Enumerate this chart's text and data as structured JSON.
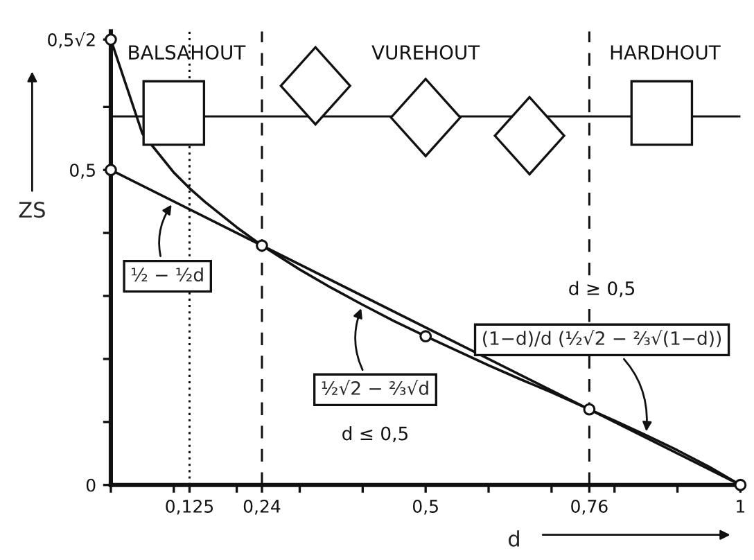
{
  "chart_data": {
    "type": "line",
    "xlabel": "d",
    "ylabel": "ZS",
    "xlim": [
      0,
      1
    ],
    "ylim": [
      0,
      0.72
    ],
    "xticks": [
      {
        "value": 0,
        "label": null
      },
      {
        "value": 0.1,
        "label": null
      },
      {
        "value": 0.125,
        "label": "0,125"
      },
      {
        "value": 0.2,
        "label": null
      },
      {
        "value": 0.24,
        "label": "0,24"
      },
      {
        "value": 0.3,
        "label": null
      },
      {
        "value": 0.4,
        "label": null
      },
      {
        "value": 0.5,
        "label": "0,5"
      },
      {
        "value": 0.6,
        "label": null
      },
      {
        "value": 0.7,
        "label": null
      },
      {
        "value": 0.76,
        "label": "0,76"
      },
      {
        "value": 0.8,
        "label": null
      },
      {
        "value": 0.9,
        "label": null
      },
      {
        "value": 1,
        "label": "1"
      }
    ],
    "yticks": [
      {
        "value": 0,
        "label": "0"
      },
      {
        "value": 0.1,
        "label": null
      },
      {
        "value": 0.2,
        "label": null
      },
      {
        "value": 0.3,
        "label": null
      },
      {
        "value": 0.4,
        "label": null
      },
      {
        "value": 0.5,
        "label": "0,5"
      },
      {
        "value": 0.6,
        "label": null
      },
      {
        "value": 0.707,
        "label": "0,5√2"
      }
    ],
    "series": [
      {
        "color": "#111111",
        "x": [
          0,
          1
        ],
        "values": [
          0.5,
          0
        ]
      },
      {
        "color": "#111111",
        "x": [
          0,
          0.05,
          0.1,
          0.125,
          0.15,
          0.2,
          0.24,
          0.3,
          0.35,
          0.4,
          0.45,
          0.5,
          0.55,
          0.6,
          0.65,
          0.7,
          0.76,
          0.8,
          0.85,
          0.9,
          0.95,
          1
        ],
        "values": [
          0.707,
          0.558,
          0.496,
          0.471,
          0.449,
          0.409,
          0.38,
          0.342,
          0.313,
          0.286,
          0.26,
          0.236,
          0.213,
          0.19,
          0.168,
          0.147,
          0.12,
          0.102,
          0.079,
          0.055,
          0.029,
          0
        ]
      },
      {
        "type": "scatter",
        "color": "#111111",
        "marker": "circle",
        "x": [
          0,
          0,
          0.24,
          0.5,
          0.76,
          1
        ],
        "values": [
          0.5,
          0.707,
          0.38,
          0.236,
          0.12,
          0
        ]
      }
    ],
    "ref_lines": [
      {
        "axis": "x",
        "value": 0.125,
        "line_style": "dotted",
        "color": "#111111"
      },
      {
        "axis": "x",
        "value": 0.24,
        "line_style": "dashed",
        "color": "#111111"
      },
      {
        "axis": "x",
        "value": 0.76,
        "line_style": "dashed",
        "color": "#111111"
      },
      {
        "axis": "y",
        "value": 0.585,
        "line_style": "solid",
        "color": "#111111"
      }
    ],
    "annotations": [
      {
        "text": "½ − ½d",
        "x": 0.1,
        "y": 0.45
      },
      {
        "text": "½√2 − ⅔√d",
        "x": 0.4,
        "y": 0.286
      },
      "d ≤ 0,5",
      {
        "text": "(1−d)/d (½√2 − ⅔√(1−d))",
        "x": 0.85,
        "y": 0.079
      },
      "d ≥ 0,5",
      "BALSAHOUT",
      "VUREHOUT",
      "HARDHOUT"
    ],
    "grid": false,
    "legend": false
  }
}
